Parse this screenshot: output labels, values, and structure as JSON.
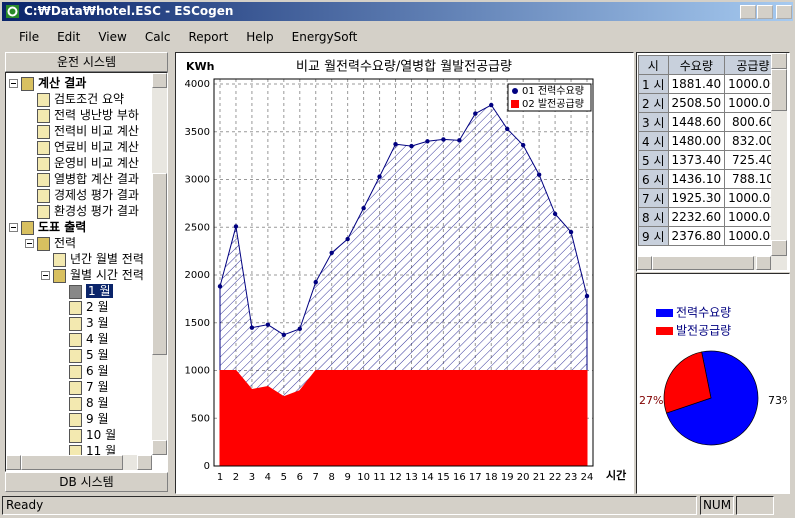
{
  "window": {
    "title": "C:₩Data₩hotel.ESC - ESCogen"
  },
  "menu": [
    "File",
    "Edit",
    "View",
    "Calc",
    "Report",
    "Help",
    "EnergySoft"
  ],
  "left_panel": {
    "title": "운전 시스템",
    "footer": "DB 시스템",
    "tree": [
      {
        "label": "계산 결과",
        "children": [
          {
            "label": "검토조건 요약"
          },
          {
            "label": "전력 냉난방 부하"
          },
          {
            "label": "전력비 비교 계산"
          },
          {
            "label": "연료비 비교 계산"
          },
          {
            "label": "운영비 비교 계산"
          },
          {
            "label": "열병합 계산 결과"
          },
          {
            "label": "경제성 평가 결과"
          },
          {
            "label": "환경성 평가 결과"
          }
        ]
      },
      {
        "label": "도표 출력",
        "children": [
          {
            "label": "전력",
            "children": [
              {
                "label": "년간 월별 전력"
              },
              {
                "label": "월별 시간 전력",
                "children": [
                  {
                    "label": "1 월",
                    "selected": true
                  },
                  {
                    "label": "2 월"
                  },
                  {
                    "label": "3 월"
                  },
                  {
                    "label": "4 월"
                  },
                  {
                    "label": "5 월"
                  },
                  {
                    "label": "6 월"
                  },
                  {
                    "label": "7 월"
                  },
                  {
                    "label": "8 월"
                  },
                  {
                    "label": "9 월"
                  },
                  {
                    "label": "10 월"
                  },
                  {
                    "label": "11 월"
                  }
                ]
              }
            ]
          }
        ]
      }
    ]
  },
  "table": {
    "header": [
      "시",
      "수요량",
      "공급량"
    ],
    "rows": [
      [
        "1 시",
        "1881.40",
        "1000.00"
      ],
      [
        "2 시",
        "2508.50",
        "1000.00"
      ],
      [
        "3 시",
        "1448.60",
        "800.60"
      ],
      [
        "4 시",
        "1480.00",
        "832.00"
      ],
      [
        "5 시",
        "1373.40",
        "725.40"
      ],
      [
        "6 시",
        "1436.10",
        "788.10"
      ],
      [
        "7 시",
        "1925.30",
        "1000.00"
      ],
      [
        "8 시",
        "2232.60",
        "1000.00"
      ],
      [
        "9 시",
        "2376.80",
        "1000.00"
      ]
    ]
  },
  "status": {
    "text": "Ready",
    "num": "NUM"
  },
  "chart_data": [
    {
      "type": "area",
      "title": "비교 월전력수요량/열병합 월발전공급량",
      "y_label": "KWh",
      "x_label": "시간",
      "categories": [
        "1",
        "2",
        "3",
        "4",
        "5",
        "6",
        "7",
        "8",
        "9",
        "10",
        "11",
        "12",
        "13",
        "14",
        "15",
        "16",
        "17",
        "18",
        "19",
        "20",
        "21",
        "22",
        "23",
        "24"
      ],
      "series": [
        {
          "name": "01 전력수요량",
          "color": "#000080",
          "values": [
            1881.4,
            2508.5,
            1448.6,
            1480.0,
            1373.4,
            1436.1,
            1925.3,
            2232.6,
            2376.8,
            2700,
            3030,
            3370,
            3350,
            3400,
            3420,
            3410,
            3690,
            3780,
            3530,
            3360,
            3050,
            2640,
            2450,
            1780
          ]
        },
        {
          "name": "02 발전공급량",
          "color": "#ff0000",
          "values": [
            1000.0,
            1000.0,
            800.6,
            832.0,
            725.4,
            788.1,
            1000.0,
            1000.0,
            1000.0,
            1000,
            1000,
            1000,
            1000,
            1000,
            1000,
            1000,
            1000,
            1000,
            1000,
            1000,
            1000,
            1000,
            1000,
            1000
          ]
        }
      ],
      "ylim": [
        0,
        4000
      ],
      "yticks": [
        0,
        500,
        1000,
        1500,
        2000,
        2500,
        3000,
        3500,
        4000
      ],
      "grid": true
    },
    {
      "type": "pie",
      "categories": [
        "전력수요량",
        "발전공급량"
      ],
      "values": [
        73,
        27
      ],
      "value_labels": [
        "73%",
        "27%"
      ],
      "colors": [
        "#0000ff",
        "#ff0000"
      ]
    }
  ]
}
